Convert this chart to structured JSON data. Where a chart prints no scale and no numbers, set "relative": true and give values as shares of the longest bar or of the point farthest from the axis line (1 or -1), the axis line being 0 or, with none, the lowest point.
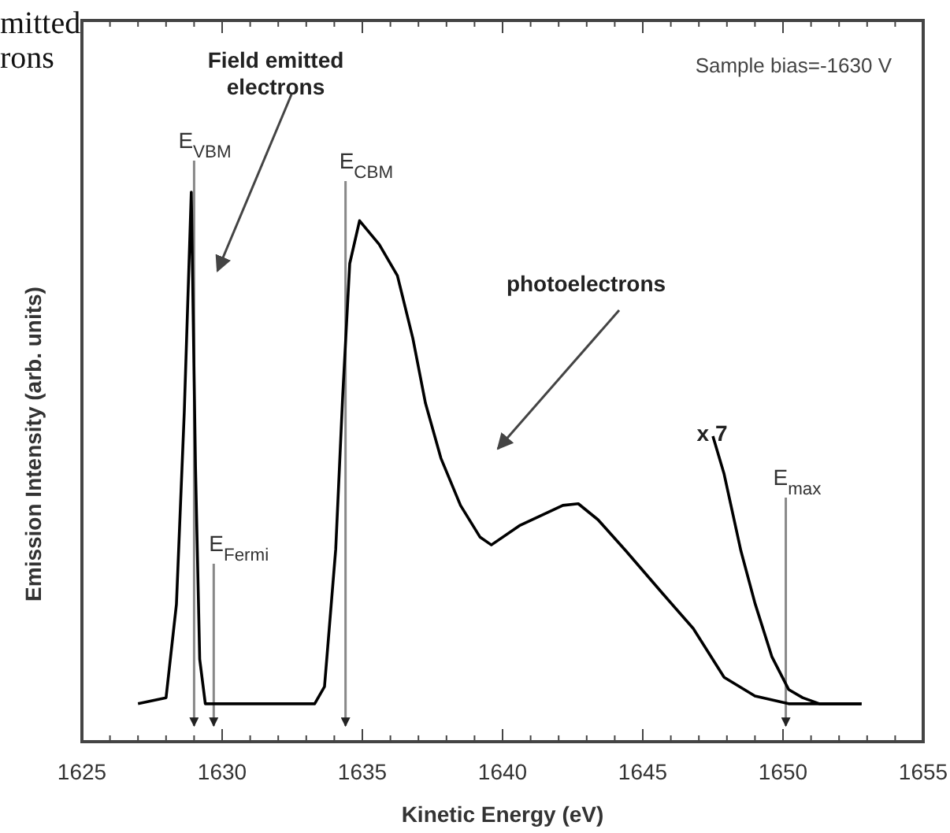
{
  "chart_data": {
    "type": "line",
    "relative": true,
    "xlabel": "Kinetic Energy (eV)",
    "ylabel": "Emission Intensity (arb. units)",
    "xlim": [
      1625,
      1655
    ],
    "xticks": [
      1625,
      1630,
      1635,
      1640,
      1645,
      1650,
      1655
    ],
    "grid": false,
    "marker": "none",
    "line_style": "solid",
    "tick_labels": "x",
    "series": [
      {
        "color": "#000000",
        "x": [
          1627.0,
          1628.0,
          1628.37,
          1628.65,
          1628.9,
          1629.05,
          1629.2,
          1629.4,
          1633.3,
          1633.65,
          1634.05,
          1634.3,
          1634.55,
          1634.9,
          1635.6,
          1636.25,
          1636.8,
          1637.25,
          1637.8,
          1638.5,
          1639.2,
          1639.6,
          1640.6,
          1642.15,
          1642.7,
          1643.4,
          1644.4,
          1645.7,
          1646.8,
          1647.9,
          1649.0,
          1650.2,
          1652.8
        ],
        "values": [
          0.069,
          0.08,
          0.25,
          0.6,
          1.0,
          0.5,
          0.15,
          0.069,
          0.069,
          0.1,
          0.35,
          0.63,
          0.87,
          0.948,
          0.905,
          0.848,
          0.734,
          0.616,
          0.516,
          0.43,
          0.372,
          0.358,
          0.393,
          0.43,
          0.433,
          0.404,
          0.347,
          0.27,
          0.206,
          0.117,
          0.083,
          0.069,
          0.069
        ]
      },
      {
        "color": "#000000",
        "x": [
          1647.5,
          1647.9,
          1648.5,
          1649.0,
          1649.6,
          1650.2,
          1650.7,
          1651.3,
          1652.8
        ],
        "values": [
          0.556,
          0.487,
          0.347,
          0.252,
          0.155,
          0.095,
          0.08,
          0.069,
          0.069
        ]
      }
    ],
    "ref_lines": [
      {
        "axis": "x",
        "value": 1629.0,
        "label": "E$_{VBM}$",
        "color": "#888888"
      },
      {
        "axis": "x",
        "value": 1629.7,
        "label": "E$_{Fermi}$",
        "color": "#888888"
      },
      {
        "axis": "x",
        "value": 1634.4,
        "label": "E$_{CBM}$",
        "color": "#888888"
      },
      {
        "axis": "x",
        "value": 1650.1,
        "label": "E$_{max}$",
        "color": "#888888"
      }
    ],
    "annotations": [
      "Sample bias=-1630 V",
      "mitted",
      "rons",
      "Field emitted electrons",
      "photoelectrons",
      "x 7"
    ]
  }
}
